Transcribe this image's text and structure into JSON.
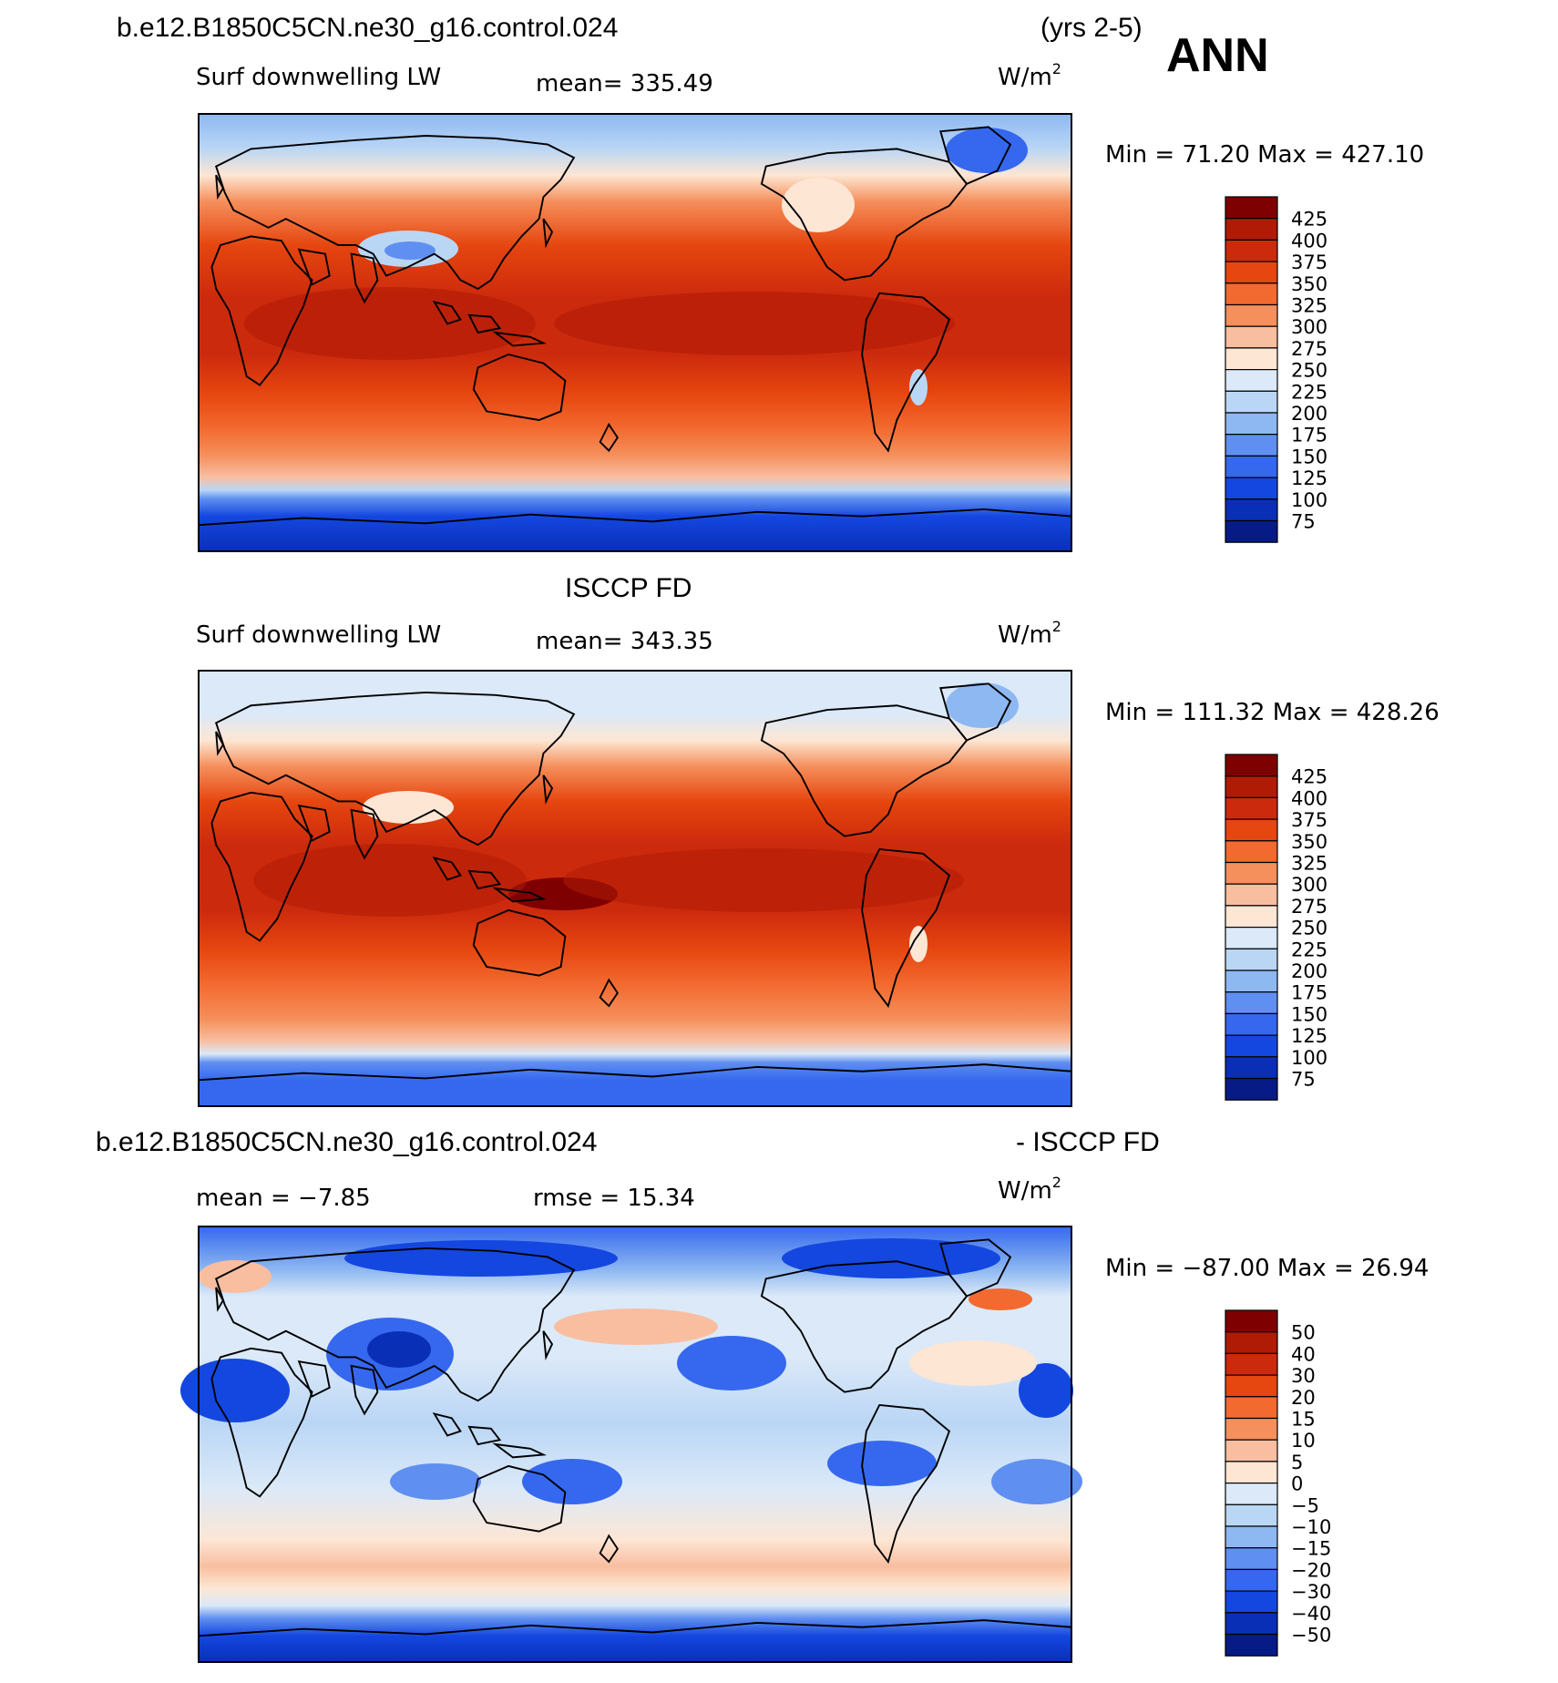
{
  "header": {
    "case_name": "b.e12.B1850C5CN.ne30_g16.control.024",
    "years": "(yrs 2-5)",
    "season": "ANN"
  },
  "panels": [
    {
      "id": "model",
      "heading": "",
      "variable": "Surf downwelling LW",
      "stat_text": "mean=  335.49",
      "stat2_text": "",
      "units_base": "W/m",
      "units_exp": "2",
      "minmax": "Min =   71.20  Max =  427.10",
      "colorbar": {
        "levels": [
          "425",
          "400",
          "375",
          "350",
          "325",
          "300",
          "275",
          "250",
          "225",
          "200",
          "175",
          "150",
          "125",
          "100",
          "75"
        ],
        "colors": [
          "#7f0000",
          "#b01b05",
          "#cc2a0d",
          "#e6460f",
          "#f26a30",
          "#f58f5c",
          "#f9bea0",
          "#fde6d4",
          "#dbe9f8",
          "#bad6f5",
          "#8eb8f1",
          "#5f8ff0",
          "#3568ef",
          "#1447e0",
          "#0a2fb7",
          "#071b86"
        ]
      }
    },
    {
      "id": "obs",
      "heading": "ISCCP FD",
      "variable": "Surf downwelling LW",
      "stat_text": "mean=  343.35",
      "stat2_text": "",
      "units_base": "W/m",
      "units_exp": "2",
      "minmax": "Min =  111.32  Max =  428.26",
      "colorbar": {
        "levels": [
          "425",
          "400",
          "375",
          "350",
          "325",
          "300",
          "275",
          "250",
          "225",
          "200",
          "175",
          "150",
          "125",
          "100",
          "75"
        ],
        "colors": [
          "#7f0000",
          "#b01b05",
          "#cc2a0d",
          "#e6460f",
          "#f26a30",
          "#f58f5c",
          "#f9bea0",
          "#fde6d4",
          "#dbe9f8",
          "#bad6f5",
          "#8eb8f1",
          "#5f8ff0",
          "#3568ef",
          "#1447e0",
          "#0a2fb7",
          "#071b86"
        ]
      }
    },
    {
      "id": "diff",
      "heading_left": "b.e12.B1850C5CN.ne30_g16.control.024",
      "heading_right": "- ISCCP FD",
      "variable": "",
      "stat_text": "mean =   −7.85",
      "stat2_text": "rmse =   15.34",
      "units_base": "W/m",
      "units_exp": "2",
      "minmax": "Min =  −87.00  Max =   26.94",
      "colorbar": {
        "levels": [
          "50",
          "40",
          "30",
          "20",
          "15",
          "10",
          "5",
          "0",
          "−5",
          "−10",
          "−15",
          "−20",
          "−30",
          "−40",
          "−50"
        ],
        "colors": [
          "#7f0000",
          "#b01b05",
          "#cc2a0d",
          "#e6460f",
          "#f26a30",
          "#f58f5c",
          "#f9bea0",
          "#fde6d4",
          "#dbe9f8",
          "#bad6f5",
          "#8eb8f1",
          "#5f8ff0",
          "#3568ef",
          "#1447e0",
          "#0a2fb7",
          "#071b86"
        ]
      }
    }
  ]
}
